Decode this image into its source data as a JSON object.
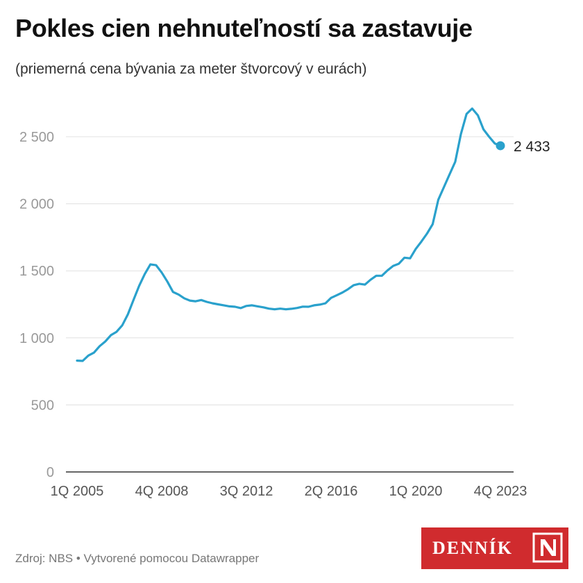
{
  "header": {
    "title": "Pokles cien nehnuteľností sa zastavuje",
    "subtitle": "(priemerná cena bývania za meter štvorcový v eurách)"
  },
  "footer": {
    "source": "Zdroj: NBS • Vytvorené pomocou Datawrapper"
  },
  "logo": {
    "text": "DENNÍK",
    "mark": "N"
  },
  "colors": {
    "line": "#2aa1cc",
    "grid": "#e0e0e0",
    "axis": "#333333",
    "tick": "#999999",
    "logo_bg": "#d02b2e"
  },
  "chart_data": {
    "type": "line",
    "title": "Pokles cien nehnuteľností sa zastavuje",
    "subtitle": "(priemerná cena bývania za meter štvorcový v eurách)",
    "xlabel": "",
    "ylabel": "",
    "ylim": [
      0,
      2700
    ],
    "yticks": [
      0,
      500,
      1000,
      1500,
      2000,
      2500
    ],
    "ytick_labels": [
      "0",
      "500",
      "1 000",
      "1 500",
      "2 000",
      "2 500"
    ],
    "xtick_labels": [
      "1Q 2005",
      "4Q 2008",
      "3Q 2012",
      "2Q 2016",
      "1Q 2020",
      "4Q 2023"
    ],
    "xtick_index": [
      0,
      15,
      30,
      45,
      60,
      75
    ],
    "grid": true,
    "end_label": "2 433",
    "x": [
      "1Q 2005",
      "2Q 2005",
      "3Q 2005",
      "4Q 2005",
      "1Q 2006",
      "2Q 2006",
      "3Q 2006",
      "4Q 2006",
      "1Q 2007",
      "2Q 2007",
      "3Q 2007",
      "4Q 2007",
      "1Q 2008",
      "2Q 2008",
      "3Q 2008",
      "4Q 2008",
      "1Q 2009",
      "2Q 2009",
      "3Q 2009",
      "4Q 2009",
      "1Q 2010",
      "2Q 2010",
      "3Q 2010",
      "4Q 2010",
      "1Q 2011",
      "2Q 2011",
      "3Q 2011",
      "4Q 2011",
      "1Q 2012",
      "2Q 2012",
      "3Q 2012",
      "4Q 2012",
      "1Q 2013",
      "2Q 2013",
      "3Q 2013",
      "4Q 2013",
      "1Q 2014",
      "2Q 2014",
      "3Q 2014",
      "4Q 2014",
      "1Q 2015",
      "2Q 2015",
      "3Q 2015",
      "4Q 2015",
      "1Q 2016",
      "2Q 2016",
      "3Q 2016",
      "4Q 2016",
      "1Q 2017",
      "2Q 2017",
      "3Q 2017",
      "4Q 2017",
      "1Q 2018",
      "2Q 2018",
      "3Q 2018",
      "4Q 2018",
      "1Q 2019",
      "2Q 2019",
      "3Q 2019",
      "4Q 2019",
      "1Q 2020",
      "2Q 2020",
      "3Q 2020",
      "4Q 2020",
      "1Q 2021",
      "2Q 2021",
      "3Q 2021",
      "4Q 2021",
      "1Q 2022",
      "2Q 2022",
      "3Q 2022",
      "4Q 2022",
      "1Q 2023",
      "2Q 2023",
      "3Q 2023",
      "4Q 2023"
    ],
    "series": [
      {
        "values": [
          830,
          828,
          868,
          890,
          938,
          973,
          1020,
          1045,
          1093,
          1175,
          1282,
          1388,
          1476,
          1548,
          1542,
          1487,
          1420,
          1342,
          1323,
          1295,
          1278,
          1273,
          1282,
          1268,
          1258,
          1250,
          1243,
          1235,
          1232,
          1222,
          1238,
          1243,
          1235,
          1228,
          1218,
          1213,
          1218,
          1213,
          1217,
          1223,
          1233,
          1232,
          1243,
          1248,
          1258,
          1298,
          1318,
          1338,
          1363,
          1393,
          1403,
          1397,
          1433,
          1463,
          1463,
          1503,
          1537,
          1553,
          1598,
          1593,
          1663,
          1718,
          1778,
          1848,
          2030,
          2125,
          2220,
          2313,
          2520,
          2670,
          2710,
          2660,
          2555,
          2500,
          2450,
          2433
        ]
      }
    ]
  }
}
